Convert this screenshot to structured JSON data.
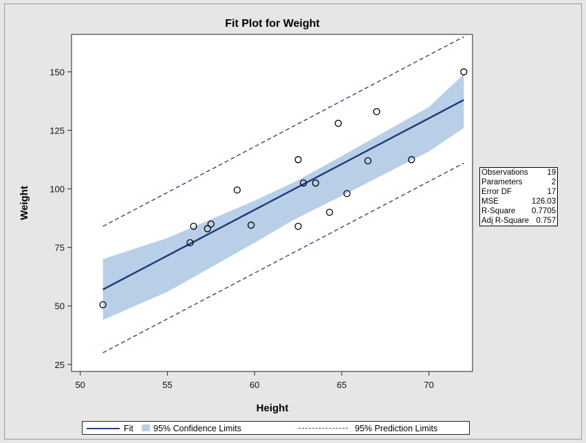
{
  "chart_data": {
    "type": "scatter",
    "title": "Fit Plot for Weight",
    "xlabel": "Height",
    "ylabel": "Weight",
    "xlim": [
      49.5,
      72.5
    ],
    "ylim": [
      22,
      166
    ],
    "x_ticks": [
      50,
      55,
      60,
      65,
      70
    ],
    "y_ticks": [
      25,
      50,
      75,
      100,
      125,
      150
    ],
    "grid": false,
    "legend_position": "bottom",
    "points": [
      {
        "x": 51.3,
        "y": 50.5
      },
      {
        "x": 56.3,
        "y": 77
      },
      {
        "x": 56.5,
        "y": 84
      },
      {
        "x": 57.3,
        "y": 83
      },
      {
        "x": 57.5,
        "y": 85
      },
      {
        "x": 59.0,
        "y": 99.5
      },
      {
        "x": 59.8,
        "y": 84.5
      },
      {
        "x": 62.5,
        "y": 112.5
      },
      {
        "x": 62.5,
        "y": 84
      },
      {
        "x": 62.8,
        "y": 102.5
      },
      {
        "x": 63.5,
        "y": 102.5
      },
      {
        "x": 64.3,
        "y": 90
      },
      {
        "x": 64.8,
        "y": 128
      },
      {
        "x": 65.3,
        "y": 98
      },
      {
        "x": 66.5,
        "y": 112
      },
      {
        "x": 67.0,
        "y": 133
      },
      {
        "x": 69.0,
        "y": 112.5
      },
      {
        "x": 72.0,
        "y": 150
      }
    ],
    "fit": {
      "x": [
        51.3,
        72.0
      ],
      "y": [
        57,
        138
      ]
    },
    "confidence_band": {
      "x": [
        51.3,
        55,
        60,
        62.3,
        65,
        70,
        72.0
      ],
      "upper": [
        70,
        79,
        95,
        103,
        114,
        135,
        149
      ],
      "lower": [
        44,
        56,
        77,
        87,
        97,
        116,
        126
      ]
    },
    "prediction_limits": {
      "x": [
        51.3,
        72.0
      ],
      "upper": [
        84,
        165
      ],
      "lower": [
        30,
        111
      ]
    },
    "series_colors": {
      "fit": "#1f3d7a",
      "confidence": "#b9cfe8",
      "prediction": "#3a4f86",
      "points": "#000000"
    }
  },
  "stats": [
    {
      "label": "Observations",
      "value": "19"
    },
    {
      "label": "Parameters",
      "value": "2"
    },
    {
      "label": "Error DF",
      "value": "17"
    },
    {
      "label": "MSE",
      "value": "126.03"
    },
    {
      "label": "R-Square",
      "value": "0.7705"
    },
    {
      "label": "Adj R-Square",
      "value": "0.757"
    }
  ],
  "legend": {
    "fit": "Fit",
    "confidence": "95% Confidence Limits",
    "prediction": "95% Prediction Limits"
  }
}
